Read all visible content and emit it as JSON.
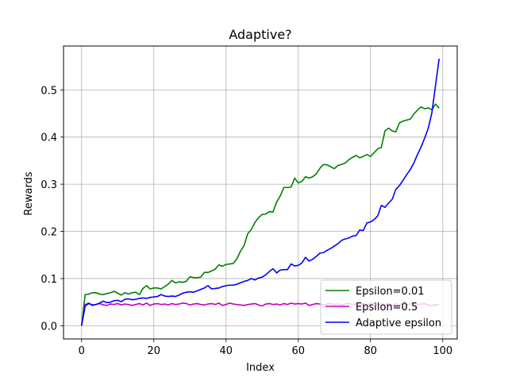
{
  "chart_data": {
    "type": "line",
    "title": "Adaptive?",
    "xlabel": "Index",
    "ylabel": "Rewards",
    "xlim": [
      -5,
      104
    ],
    "ylim": [
      -0.028,
      0.593
    ],
    "xticks": [
      0,
      20,
      40,
      60,
      80,
      100
    ],
    "yticks": [
      0.0,
      0.1,
      0.2,
      0.3,
      0.4,
      0.5
    ],
    "xtick_labels": [
      "0",
      "20",
      "40",
      "60",
      "80",
      "100"
    ],
    "ytick_labels": [
      "0.0",
      "0.1",
      "0.2",
      "0.3",
      "0.4",
      "0.5"
    ],
    "grid": true,
    "legend_position": "lower-right",
    "x": [
      0,
      1,
      2,
      3,
      4,
      5,
      6,
      7,
      8,
      9,
      10,
      11,
      12,
      13,
      14,
      15,
      16,
      17,
      18,
      19,
      20,
      21,
      22,
      23,
      24,
      25,
      26,
      27,
      28,
      29,
      30,
      31,
      32,
      33,
      34,
      35,
      36,
      37,
      38,
      39,
      40,
      41,
      42,
      43,
      44,
      45,
      46,
      47,
      48,
      49,
      50,
      51,
      52,
      53,
      54,
      55,
      56,
      57,
      58,
      59,
      60,
      61,
      62,
      63,
      64,
      65,
      66,
      67,
      68,
      69,
      70,
      71,
      72,
      73,
      74,
      75,
      76,
      77,
      78,
      79,
      80,
      81,
      82,
      83,
      84,
      85,
      86,
      87,
      88,
      89,
      90,
      91,
      92,
      93,
      94,
      95,
      96,
      97,
      98,
      99
    ],
    "series": [
      {
        "name": "Epsilon=0.01",
        "color": "#008000",
        "values": [
          0.0,
          0.066,
          0.067,
          0.07,
          0.07,
          0.067,
          0.066,
          0.068,
          0.07,
          0.073,
          0.069,
          0.065,
          0.07,
          0.067,
          0.07,
          0.071,
          0.066,
          0.079,
          0.085,
          0.078,
          0.08,
          0.08,
          0.078,
          0.083,
          0.088,
          0.096,
          0.091,
          0.093,
          0.092,
          0.094,
          0.104,
          0.102,
          0.102,
          0.103,
          0.113,
          0.113,
          0.116,
          0.12,
          0.129,
          0.126,
          0.13,
          0.131,
          0.132,
          0.142,
          0.158,
          0.17,
          0.195,
          0.204,
          0.219,
          0.229,
          0.236,
          0.237,
          0.242,
          0.241,
          0.262,
          0.275,
          0.293,
          0.293,
          0.294,
          0.313,
          0.303,
          0.306,
          0.316,
          0.313,
          0.316,
          0.322,
          0.334,
          0.342,
          0.341,
          0.337,
          0.333,
          0.34,
          0.342,
          0.345,
          0.352,
          0.357,
          0.361,
          0.356,
          0.359,
          0.363,
          0.359,
          0.367,
          0.375,
          0.378,
          0.413,
          0.419,
          0.413,
          0.411,
          0.43,
          0.434,
          0.436,
          0.438,
          0.449,
          0.457,
          0.464,
          0.46,
          0.462,
          0.458,
          0.47,
          0.461
        ]
      },
      {
        "name": "Epsilon=0.5",
        "color": "#bf00bf",
        "values": [
          0.0,
          0.045,
          0.048,
          0.043,
          0.045,
          0.047,
          0.044,
          0.043,
          0.046,
          0.045,
          0.047,
          0.044,
          0.046,
          0.045,
          0.043,
          0.045,
          0.047,
          0.044,
          0.048,
          0.043,
          0.046,
          0.047,
          0.045,
          0.046,
          0.044,
          0.047,
          0.045,
          0.046,
          0.048,
          0.047,
          0.044,
          0.046,
          0.047,
          0.045,
          0.044,
          0.046,
          0.047,
          0.045,
          0.048,
          0.043,
          0.045,
          0.048,
          0.046,
          0.045,
          0.044,
          0.043,
          0.045,
          0.046,
          0.047,
          0.044,
          0.042,
          0.046,
          0.047,
          0.045,
          0.046,
          0.044,
          0.047,
          0.045,
          0.048,
          0.046,
          0.047,
          0.046,
          0.048,
          0.043,
          0.045,
          0.047,
          0.046,
          0.044,
          0.046,
          0.047,
          0.045,
          0.046,
          0.044,
          0.046,
          0.047,
          0.045,
          0.046,
          0.044,
          0.047,
          0.045,
          0.046,
          0.048,
          0.044,
          0.046,
          0.045,
          0.047,
          0.043,
          0.046,
          0.045,
          0.047,
          0.044,
          0.046,
          0.048,
          0.045,
          0.046,
          0.047,
          0.044,
          0.043,
          0.044,
          0.045
        ]
      },
      {
        "name": "Adaptive epsilon",
        "color": "#0000ff",
        "values": [
          0.0,
          0.042,
          0.047,
          0.044,
          0.045,
          0.048,
          0.052,
          0.049,
          0.05,
          0.053,
          0.054,
          0.051,
          0.056,
          0.057,
          0.055,
          0.056,
          0.058,
          0.059,
          0.058,
          0.06,
          0.061,
          0.062,
          0.066,
          0.063,
          0.062,
          0.063,
          0.062,
          0.065,
          0.069,
          0.071,
          0.072,
          0.071,
          0.074,
          0.077,
          0.08,
          0.085,
          0.078,
          0.079,
          0.08,
          0.083,
          0.085,
          0.086,
          0.086,
          0.088,
          0.091,
          0.094,
          0.096,
          0.1,
          0.097,
          0.101,
          0.103,
          0.108,
          0.115,
          0.121,
          0.112,
          0.118,
          0.119,
          0.119,
          0.131,
          0.127,
          0.128,
          0.133,
          0.145,
          0.137,
          0.141,
          0.147,
          0.154,
          0.155,
          0.16,
          0.164,
          0.169,
          0.174,
          0.181,
          0.184,
          0.186,
          0.19,
          0.191,
          0.203,
          0.202,
          0.218,
          0.22,
          0.225,
          0.233,
          0.255,
          0.251,
          0.26,
          0.268,
          0.289,
          0.297,
          0.308,
          0.32,
          0.331,
          0.345,
          0.363,
          0.379,
          0.398,
          0.419,
          0.452,
          0.51,
          0.566
        ]
      }
    ]
  }
}
